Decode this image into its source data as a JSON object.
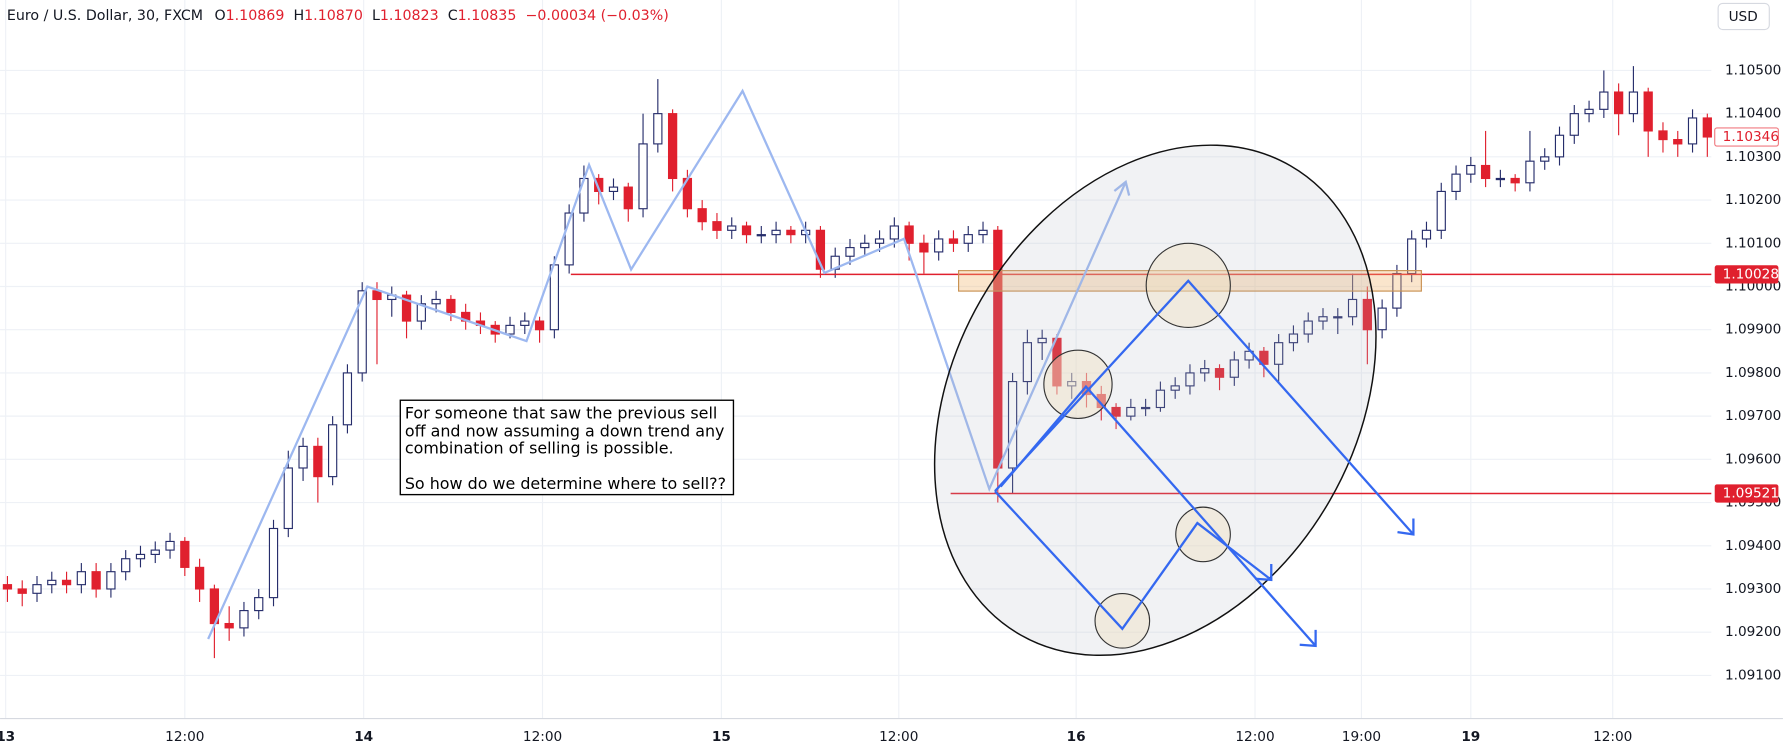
{
  "header": {
    "symbol": "Euro / U.S. Dollar, 30, FXCM",
    "ohlc": [
      {
        "label": "O",
        "value": "1.10869"
      },
      {
        "label": "H",
        "value": "1.10870"
      },
      {
        "label": "L",
        "value": "1.10823"
      },
      {
        "label": "C",
        "value": "1.10835"
      }
    ],
    "change": "−0.00034 (−0.03%)",
    "currency": "USD"
  },
  "annotation": {
    "lines": [
      "For someone that saw the previous sell",
      "off and now assuming a down trend any",
      "combination of selling is possible.",
      "So how do we determine where to sell??"
    ]
  },
  "chart_data": {
    "type": "candlestick",
    "colors": {
      "up": "#ffffff",
      "down": "#e0202e",
      "outline": "#262d6b",
      "grid": "#eef1f6"
    },
    "grid": true,
    "xlim": [
      0,
      115.77
    ],
    "xticks": [
      {
        "value": 0.38,
        "label": "13"
      },
      {
        "value": 12.5,
        "label": "12:00"
      },
      {
        "value": 24.6,
        "label": "14"
      },
      {
        "value": 36.7,
        "label": "12:00"
      },
      {
        "value": 48.8,
        "label": "15"
      },
      {
        "value": 60.8,
        "label": "12:00"
      },
      {
        "value": 72.8,
        "label": "16"
      },
      {
        "value": 84.9,
        "label": "12:00"
      },
      {
        "value": 92.1,
        "label": "19:00"
      },
      {
        "value": 99.5,
        "label": "19"
      },
      {
        "value": 109.1,
        "label": "12:00"
      }
    ],
    "ylim": [
      1.09,
      1.10663
    ],
    "yticks": [
      {
        "value": 1.105,
        "label": "1.10500"
      },
      {
        "value": 1.104,
        "label": "1.10400"
      },
      {
        "value": 1.103,
        "label": "1.10300"
      },
      {
        "value": 1.102,
        "label": "1.10200"
      },
      {
        "value": 1.101,
        "label": "1.10100"
      },
      {
        "value": 1.1,
        "label": "1.10000"
      },
      {
        "value": 1.099,
        "label": "1.09900"
      },
      {
        "value": 1.098,
        "label": "1.09800"
      },
      {
        "value": 1.097,
        "label": "1.09700"
      },
      {
        "value": 1.096,
        "label": "1.09600"
      },
      {
        "value": 1.095,
        "label": "1.09500"
      },
      {
        "value": 1.094,
        "label": "1.09400"
      },
      {
        "value": 1.093,
        "label": "1.09300"
      },
      {
        "value": 1.092,
        "label": "1.09200"
      },
      {
        "value": 1.091,
        "label": "1.09100"
      }
    ],
    "hlines": [
      {
        "value": 1.10028,
        "label": "1.10028"
      },
      {
        "value": 1.09521,
        "label": "1.09521"
      }
    ],
    "last_price": {
      "value": 1.10346,
      "label": "1.10346"
    },
    "candles": [
      [
        1.0931,
        1.0933,
        1.0927,
        1.093
      ],
      [
        1.093,
        1.0932,
        1.0926,
        1.0929
      ],
      [
        1.0929,
        1.0933,
        1.0927,
        1.0931
      ],
      [
        1.0931,
        1.0934,
        1.0929,
        1.0932
      ],
      [
        1.0932,
        1.0934,
        1.0929,
        1.0931
      ],
      [
        1.0931,
        1.0936,
        1.0929,
        1.0934
      ],
      [
        1.0934,
        1.0936,
        1.0928,
        1.093
      ],
      [
        1.093,
        1.0936,
        1.0928,
        1.0934
      ],
      [
        1.0934,
        1.0939,
        1.0932,
        1.0937
      ],
      [
        1.0937,
        1.094,
        1.0935,
        1.0938
      ],
      [
        1.0938,
        1.0941,
        1.0936,
        1.0939
      ],
      [
        1.0939,
        1.0943,
        1.0937,
        1.0941
      ],
      [
        1.0941,
        1.0942,
        1.0933,
        1.0935
      ],
      [
        1.0935,
        1.0937,
        1.0927,
        1.093
      ],
      [
        1.093,
        1.0931,
        1.0914,
        1.0922
      ],
      [
        1.0922,
        1.0926,
        1.0918,
        1.0921
      ],
      [
        1.0921,
        1.0927,
        1.0919,
        1.0925
      ],
      [
        1.0925,
        1.093,
        1.0923,
        1.0928
      ],
      [
        1.0928,
        1.0946,
        1.0926,
        1.0944
      ],
      [
        1.0944,
        1.0962,
        1.0942,
        1.0958
      ],
      [
        1.0958,
        1.0965,
        1.0955,
        1.0963
      ],
      [
        1.0963,
        1.0965,
        1.095,
        1.0956
      ],
      [
        1.0956,
        1.097,
        1.0954,
        1.0968
      ],
      [
        1.0968,
        1.0982,
        1.0966,
        1.098
      ],
      [
        1.098,
        1.1001,
        1.0978,
        1.0999
      ],
      [
        1.0999,
        1.1001,
        1.0982,
        1.0997
      ],
      [
        1.0997,
        1.1,
        1.0993,
        1.0998
      ],
      [
        1.0998,
        1.0999,
        1.0988,
        1.0992
      ],
      [
        1.0992,
        1.0998,
        1.099,
        1.0996
      ],
      [
        1.0996,
        1.0999,
        1.0994,
        1.0997
      ],
      [
        1.0997,
        1.0998,
        1.0992,
        1.0994
      ],
      [
        1.0994,
        1.0996,
        1.099,
        1.0992
      ],
      [
        1.0992,
        1.0994,
        1.0989,
        1.0991
      ],
      [
        1.0991,
        1.0992,
        1.0987,
        1.0989
      ],
      [
        1.0989,
        1.0993,
        1.0988,
        1.0991
      ],
      [
        1.0991,
        1.0994,
        1.0989,
        1.0992
      ],
      [
        1.0992,
        1.0993,
        1.0987,
        1.099
      ],
      [
        1.099,
        1.1007,
        1.0988,
        1.1005
      ],
      [
        1.1005,
        1.1019,
        1.1003,
        1.1017
      ],
      [
        1.1017,
        1.1028,
        1.1015,
        1.1025
      ],
      [
        1.1025,
        1.1026,
        1.1019,
        1.1022
      ],
      [
        1.1022,
        1.1025,
        1.102,
        1.1023
      ],
      [
        1.1023,
        1.1024,
        1.1015,
        1.1018
      ],
      [
        1.1018,
        1.104,
        1.1016,
        1.1033
      ],
      [
        1.1033,
        1.1048,
        1.1031,
        1.104
      ],
      [
        1.104,
        1.1041,
        1.1022,
        1.1025
      ],
      [
        1.1025,
        1.1027,
        1.1016,
        1.1018
      ],
      [
        1.1018,
        1.102,
        1.1013,
        1.1015
      ],
      [
        1.1015,
        1.1017,
        1.1011,
        1.1013
      ],
      [
        1.1013,
        1.1016,
        1.1011,
        1.1014
      ],
      [
        1.1014,
        1.1015,
        1.101,
        1.1012
      ],
      [
        1.1012,
        1.1014,
        1.101,
        1.1012
      ],
      [
        1.1012,
        1.1015,
        1.101,
        1.1013
      ],
      [
        1.1013,
        1.1014,
        1.101,
        1.1012
      ],
      [
        1.1012,
        1.1015,
        1.101,
        1.1013
      ],
      [
        1.1013,
        1.1014,
        1.1002,
        1.1004
      ],
      [
        1.1004,
        1.1009,
        1.1002,
        1.1007
      ],
      [
        1.1007,
        1.1011,
        1.1005,
        1.1009
      ],
      [
        1.1009,
        1.1012,
        1.1007,
        1.101
      ],
      [
        1.101,
        1.1013,
        1.1008,
        1.1011
      ],
      [
        1.1011,
        1.1016,
        1.1009,
        1.1014
      ],
      [
        1.1014,
        1.1015,
        1.1006,
        1.101
      ],
      [
        1.101,
        1.1012,
        1.1003,
        1.1008
      ],
      [
        1.1008,
        1.1013,
        1.1006,
        1.1011
      ],
      [
        1.1011,
        1.1013,
        1.1008,
        1.101
      ],
      [
        1.101,
        1.1014,
        1.1008,
        1.1012
      ],
      [
        1.1012,
        1.1015,
        1.101,
        1.1013
      ],
      [
        1.1013,
        1.1014,
        1.095,
        1.0958
      ],
      [
        1.0958,
        1.098,
        1.0952,
        1.0978
      ],
      [
        1.0978,
        1.099,
        1.0975,
        1.0987
      ],
      [
        1.0987,
        1.099,
        1.0983,
        1.0988
      ],
      [
        1.0988,
        1.0989,
        1.0975,
        1.0977
      ],
      [
        1.0977,
        1.098,
        1.0974,
        1.0978
      ],
      [
        1.0978,
        1.098,
        1.0972,
        1.0975
      ],
      [
        1.0975,
        1.0977,
        1.0969,
        1.0972
      ],
      [
        1.0972,
        1.0973,
        1.0967,
        1.097
      ],
      [
        1.097,
        1.0974,
        1.0969,
        1.0972
      ],
      [
        1.0972,
        1.0974,
        1.097,
        1.0972
      ],
      [
        1.0972,
        1.0978,
        1.0971,
        1.0976
      ],
      [
        1.0976,
        1.0979,
        1.0974,
        1.0977
      ],
      [
        1.0977,
        1.0982,
        1.0975,
        1.098
      ],
      [
        1.098,
        1.0983,
        1.0978,
        1.0981
      ],
      [
        1.0981,
        1.0982,
        1.0976,
        1.0979
      ],
      [
        1.0979,
        1.0985,
        1.0977,
        1.0983
      ],
      [
        1.0983,
        1.0987,
        1.0981,
        1.0985
      ],
      [
        1.0985,
        1.0986,
        1.0979,
        1.0982
      ],
      [
        1.0982,
        1.0989,
        1.0978,
        1.0987
      ],
      [
        1.0987,
        1.0991,
        1.0985,
        1.0989
      ],
      [
        1.0989,
        1.0994,
        1.0987,
        1.0992
      ],
      [
        1.0992,
        1.0995,
        1.099,
        1.0993
      ],
      [
        1.0993,
        1.0995,
        1.0989,
        1.0993
      ],
      [
        1.0993,
        1.1003,
        1.0991,
        1.0997
      ],
      [
        1.0997,
        1.1,
        1.0982,
        1.099
      ],
      [
        1.099,
        1.0997,
        1.0988,
        1.0995
      ],
      [
        1.0995,
        1.1005,
        1.0993,
        1.1003
      ],
      [
        1.1003,
        1.1013,
        1.1001,
        1.1011
      ],
      [
        1.1011,
        1.1015,
        1.1009,
        1.1013
      ],
      [
        1.1013,
        1.1024,
        1.1011,
        1.1022
      ],
      [
        1.1022,
        1.1028,
        1.102,
        1.1026
      ],
      [
        1.1026,
        1.103,
        1.1024,
        1.1028
      ],
      [
        1.1028,
        1.1036,
        1.1023,
        1.1025
      ],
      [
        1.1025,
        1.1027,
        1.1023,
        1.1025
      ],
      [
        1.1025,
        1.1026,
        1.1022,
        1.1024
      ],
      [
        1.1024,
        1.1036,
        1.1022,
        1.1029
      ],
      [
        1.1029,
        1.1032,
        1.1027,
        1.103
      ],
      [
        1.103,
        1.1037,
        1.1028,
        1.1035
      ],
      [
        1.1035,
        1.1042,
        1.1033,
        1.104
      ],
      [
        1.104,
        1.1043,
        1.1038,
        1.1041
      ],
      [
        1.1041,
        1.105,
        1.1039,
        1.1045
      ],
      [
        1.1045,
        1.1047,
        1.1035,
        1.104
      ],
      [
        1.104,
        1.1051,
        1.1038,
        1.1045
      ],
      [
        1.1045,
        1.1046,
        1.103,
        1.1036
      ],
      [
        1.1036,
        1.1038,
        1.1031,
        1.1034
      ],
      [
        1.1034,
        1.1036,
        1.103,
        1.1033
      ],
      [
        1.1033,
        1.1041,
        1.1031,
        1.1039
      ],
      [
        1.1039,
        1.104,
        1.103,
        1.10346
      ]
    ]
  }
}
